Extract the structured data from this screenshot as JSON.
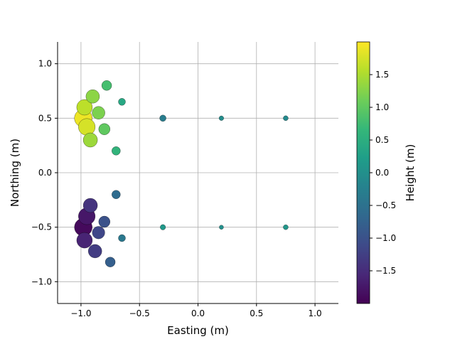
{
  "chart_data": {
    "type": "scatter",
    "title": "",
    "xlabel": "Easting (m)",
    "ylabel": "Northing (m)",
    "xlim": [
      -1.2,
      1.2
    ],
    "ylim": [
      -1.2,
      1.2
    ],
    "xticks": [
      -1.0,
      -0.5,
      0.0,
      0.5,
      1.0
    ],
    "xtick_labels": [
      "−1.0",
      "−0.5",
      "0.0",
      "0.5",
      "1.0"
    ],
    "yticks": [
      -1.0,
      -0.5,
      0.0,
      0.5,
      1.0
    ],
    "ytick_labels": [
      "−1.0",
      "−0.5",
      "0.0",
      "0.5",
      "1.0"
    ],
    "grid": true,
    "colormap": "viridis",
    "colormap_stops": [
      "#440154",
      "#482878",
      "#3e4a89",
      "#31688e",
      "#26828e",
      "#1f9e89",
      "#35b779",
      "#6ece58",
      "#b5de2b",
      "#fde725"
    ],
    "colorbar": {
      "label": "Height (m)",
      "range": [
        -2.0,
        2.0
      ],
      "ticks": [
        -1.5,
        -1.0,
        -0.5,
        0.0,
        0.5,
        1.0,
        1.5
      ],
      "tick_labels": [
        "−1.5",
        "−1.0",
        "−0.5",
        "0.0",
        "0.5",
        "1.0",
        "1.5"
      ]
    },
    "series": [
      {
        "description_note": "",
        "points": [
          {
            "x": -0.98,
            "y": 0.5,
            "height": 1.9
          },
          {
            "x": -0.95,
            "y": 0.42,
            "height": 1.75
          },
          {
            "x": -0.97,
            "y": 0.6,
            "height": 1.6
          },
          {
            "x": -0.92,
            "y": 0.3,
            "height": 1.4
          },
          {
            "x": -0.9,
            "y": 0.7,
            "height": 1.3
          },
          {
            "x": -0.85,
            "y": 0.55,
            "height": 1.2
          },
          {
            "x": -0.8,
            "y": 0.4,
            "height": 1.0
          },
          {
            "x": -0.78,
            "y": 0.8,
            "height": 0.8
          },
          {
            "x": -0.7,
            "y": 0.2,
            "height": 0.6
          },
          {
            "x": -0.65,
            "y": 0.65,
            "height": 0.4
          },
          {
            "x": -0.98,
            "y": -0.5,
            "height": -1.9
          },
          {
            "x": -0.95,
            "y": -0.4,
            "height": -1.75
          },
          {
            "x": -0.97,
            "y": -0.62,
            "height": -1.6
          },
          {
            "x": -0.92,
            "y": -0.3,
            "height": -1.4
          },
          {
            "x": -0.88,
            "y": -0.72,
            "height": -1.3
          },
          {
            "x": -0.85,
            "y": -0.55,
            "height": -1.15
          },
          {
            "x": -0.8,
            "y": -0.45,
            "height": -1.0
          },
          {
            "x": -0.75,
            "y": -0.82,
            "height": -0.8
          },
          {
            "x": -0.7,
            "y": -0.2,
            "height": -0.6
          },
          {
            "x": -0.65,
            "y": -0.6,
            "height": -0.4
          },
          {
            "x": -0.3,
            "y": 0.5,
            "height": -0.3
          },
          {
            "x": 0.2,
            "y": 0.5,
            "height": -0.05
          },
          {
            "x": 0.75,
            "y": 0.5,
            "height": -0.1
          },
          {
            "x": -0.3,
            "y": -0.5,
            "height": 0.15
          },
          {
            "x": 0.2,
            "y": -0.5,
            "height": 0.0
          },
          {
            "x": 0.75,
            "y": -0.5,
            "height": 0.1
          }
        ]
      }
    ]
  }
}
